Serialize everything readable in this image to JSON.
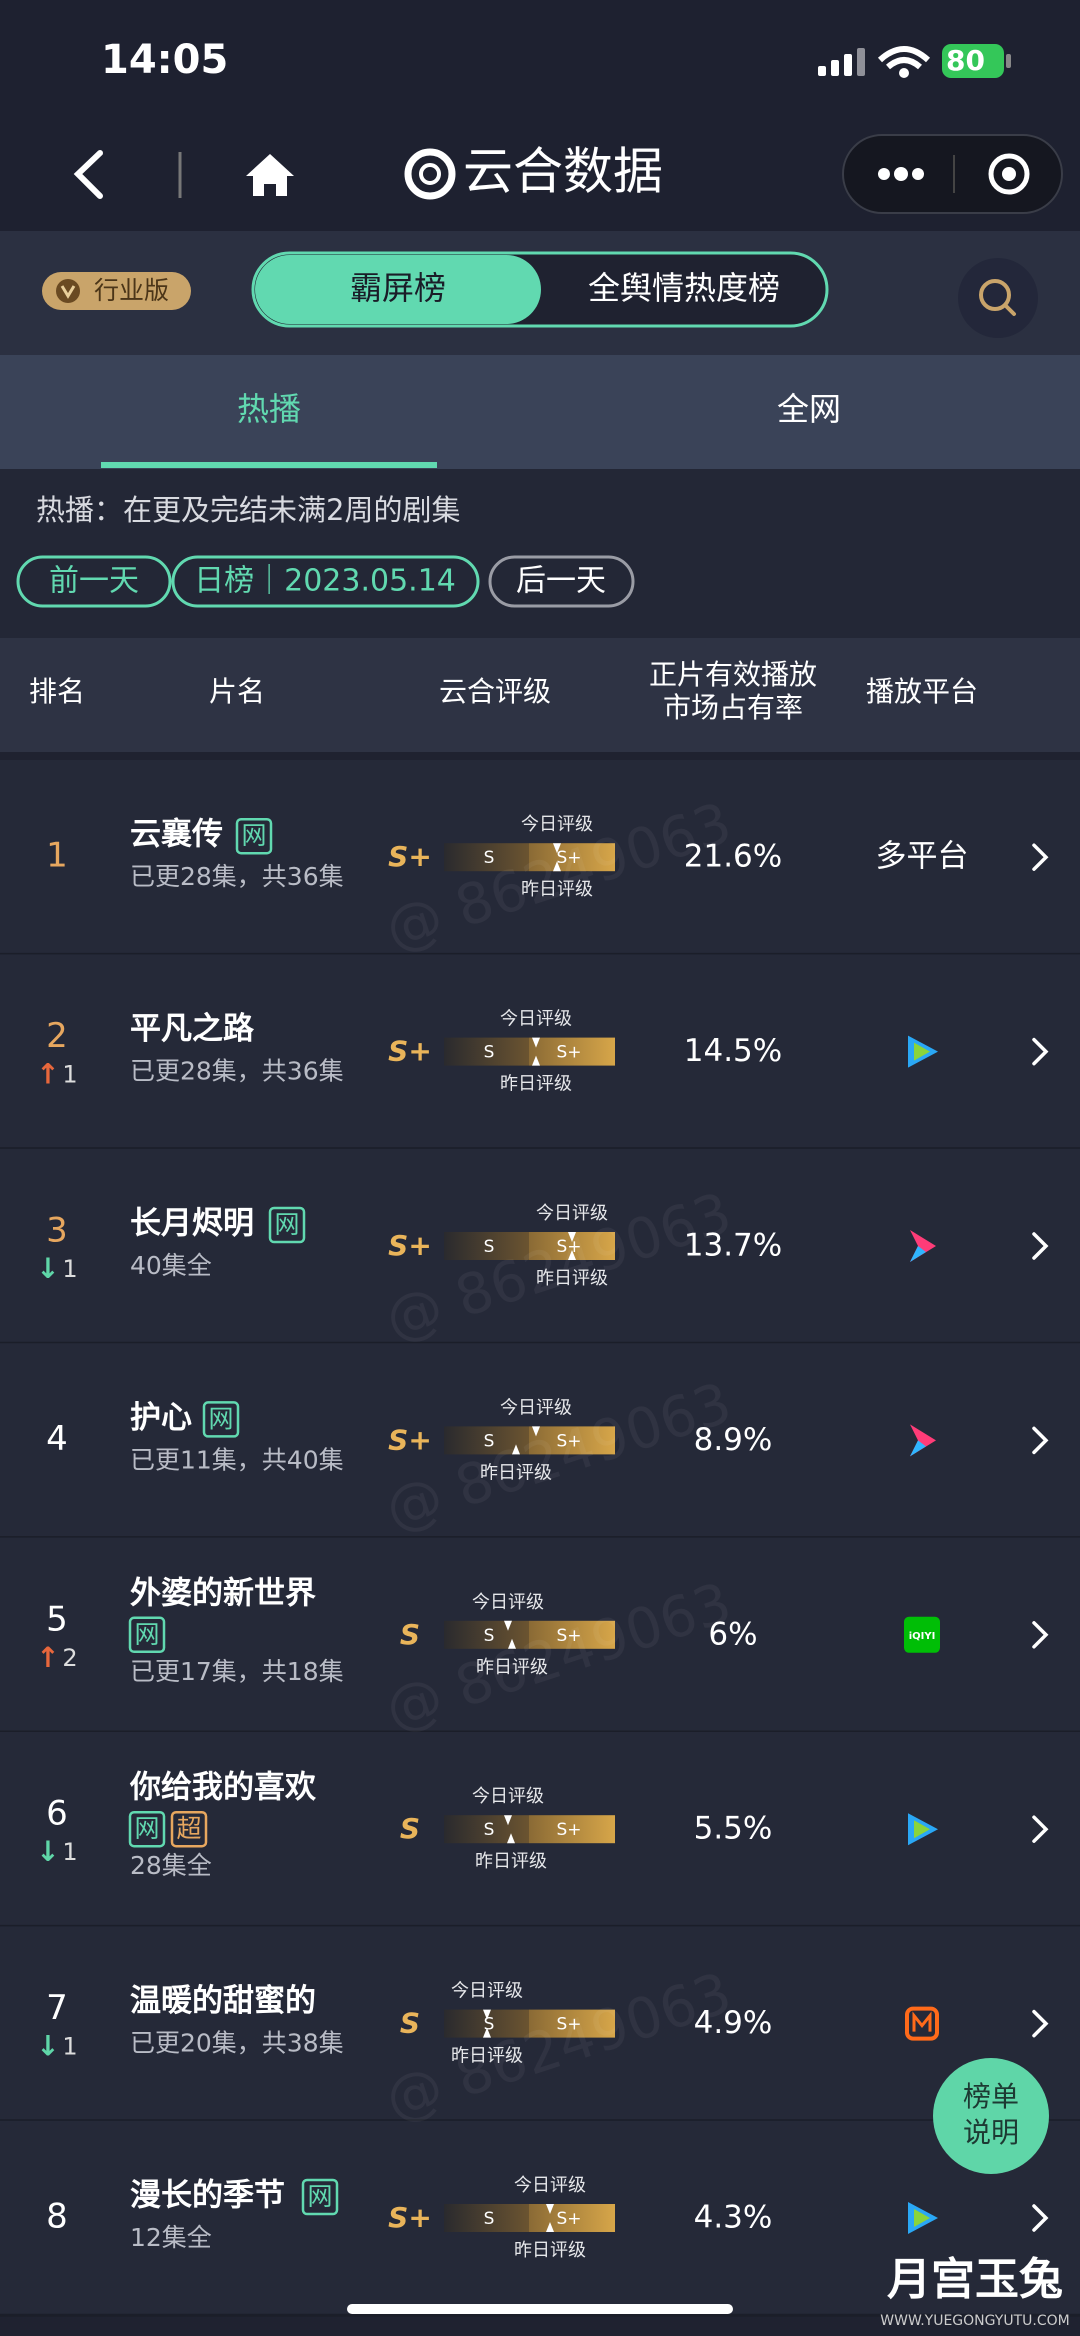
{
  "status_bar": {
    "time": "14:05",
    "battery": "80"
  },
  "nav": {
    "title": "云合数据"
  },
  "header": {
    "badge": "行业版",
    "tabs": [
      "霸屏榜",
      "全舆情热度榜"
    ]
  },
  "sub_tabs": [
    "热播",
    "全网"
  ],
  "description": "热播：在更及完结未满2周的剧集",
  "date_bar": {
    "prev": "前一天",
    "current": "日榜｜2023.05.14",
    "next": "后一天"
  },
  "columns": {
    "rank": "排名",
    "title": "片名",
    "rating": "云合评级",
    "share": [
      "正片有效播放",
      "市场占有率"
    ],
    "platform": "播放平台"
  },
  "rating_bar": {
    "left": "S",
    "right": "S+",
    "today": "今日评级",
    "yesterday": "昨日评级"
  },
  "rows": [
    {
      "rank": "1",
      "title": "云襄传",
      "tags": [
        "网"
      ],
      "episodes": "已更28集，共36集",
      "rating": "S+",
      "share": "21.6%",
      "platform": "多平台"
    },
    {
      "rank": "2",
      "trend": "↑",
      "change": "1",
      "title": "平凡之路",
      "tags": [],
      "episodes": "已更28集，共36集",
      "rating": "S+",
      "share": "14.5%"
    },
    {
      "rank": "3",
      "trend": "↓",
      "change": "1",
      "title": "长月烬明",
      "tags": [
        "网"
      ],
      "episodes": "40集全",
      "rating": "S+",
      "share": "13.7%"
    },
    {
      "rank": "4",
      "title": "护心",
      "tags": [
        "网"
      ],
      "episodes": "已更11集，共40集",
      "rating": "S+",
      "share": "8.9%"
    },
    {
      "rank": "5",
      "trend": "↑",
      "change": "2",
      "title": "外婆的新世界",
      "tags": [
        "网"
      ],
      "episodes": "已更17集，共18集",
      "rating": "S",
      "share": "6%",
      "platform": "iQIYI"
    },
    {
      "rank": "6",
      "trend": "↓",
      "change": "1",
      "title": "你给我的喜欢",
      "tags": [
        "网",
        "超"
      ],
      "episodes": "28集全",
      "rating": "S",
      "share": "5.5%"
    },
    {
      "rank": "7",
      "trend": "↓",
      "change": "1",
      "title": "温暖的甜蜜的",
      "tags": [],
      "episodes": "已更20集，共38集",
      "rating": "S",
      "share": "4.9%"
    },
    {
      "rank": "8",
      "title": "漫长的季节",
      "tags": [
        "网"
      ],
      "episodes": "12集全",
      "rating": "S+",
      "share": "4.3%"
    }
  ],
  "float_button": [
    "榜单",
    "说明"
  ],
  "watermark": "@ 86249063",
  "logo": {
    "name": "月宫玉兔",
    "url": "WWW.YUEGONGYUTU.COM"
  }
}
